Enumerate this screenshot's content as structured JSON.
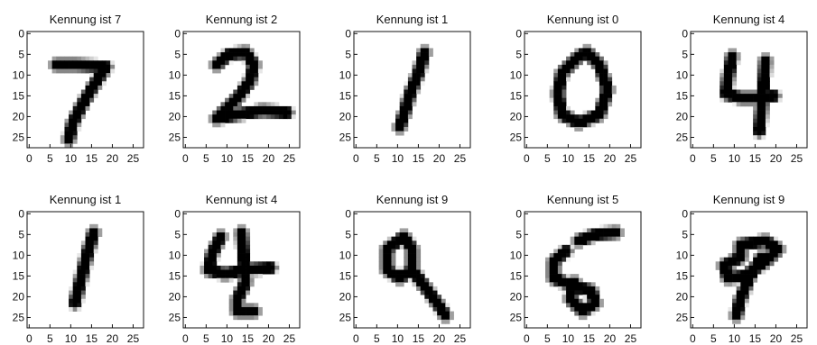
{
  "chart_data": [
    {
      "type": "heatmap",
      "title": "Kennung ist 7",
      "xlim": [
        0,
        27
      ],
      "ylim": [
        27,
        0
      ],
      "x_ticks": [
        "0",
        "5",
        "10",
        "15",
        "20",
        "25"
      ],
      "y_ticks": [
        "0",
        "5",
        "10",
        "15",
        "20",
        "25"
      ],
      "colormap": "gray_r",
      "strokes": [
        [
          [
            7,
            8
          ],
          [
            12,
            8
          ],
          [
            19,
            8.5
          ]
        ],
        [
          [
            19,
            8.5
          ],
          [
            16,
            13
          ],
          [
            13,
            18
          ],
          [
            11,
            22
          ],
          [
            10,
            26
          ]
        ]
      ]
    },
    {
      "type": "heatmap",
      "title": "Kennung ist 2",
      "xlim": [
        0,
        27
      ],
      "ylim": [
        27,
        0
      ],
      "x_ticks": [
        "0",
        "5",
        "10",
        "15",
        "20",
        "25"
      ],
      "y_ticks": [
        "0",
        "5",
        "10",
        "15",
        "20",
        "25"
      ],
      "colormap": "gray_r",
      "strokes": [
        [
          [
            8,
            8
          ],
          [
            11,
            5.5
          ],
          [
            15,
            5
          ],
          [
            17,
            8
          ],
          [
            16,
            12
          ],
          [
            13,
            16
          ],
          [
            10,
            19
          ],
          [
            8,
            21
          ]
        ],
        [
          [
            8,
            21
          ],
          [
            13,
            20
          ],
          [
            19,
            19
          ],
          [
            25,
            19.5
          ]
        ]
      ]
    },
    {
      "type": "heatmap",
      "title": "Kennung ist 1",
      "xlim": [
        0,
        27
      ],
      "ylim": [
        27,
        0
      ],
      "x_ticks": [
        "0",
        "5",
        "10",
        "15",
        "20",
        "25"
      ],
      "y_ticks": [
        "0",
        "5",
        "10",
        "15",
        "20",
        "25"
      ],
      "colormap": "gray_r",
      "strokes": [
        [
          [
            17,
            5
          ],
          [
            15.5,
            10
          ],
          [
            13.5,
            15
          ],
          [
            12,
            20
          ],
          [
            11,
            23
          ]
        ]
      ]
    },
    {
      "type": "heatmap",
      "title": "Kennung ist 0",
      "xlim": [
        0,
        27
      ],
      "ylim": [
        27,
        0
      ],
      "x_ticks": [
        "0",
        "5",
        "10",
        "15",
        "20",
        "25"
      ],
      "y_ticks": [
        "0",
        "5",
        "10",
        "15",
        "20",
        "25"
      ],
      "colormap": "gray_r",
      "strokes": [
        [
          [
            13,
            6
          ],
          [
            9,
            10
          ],
          [
            8,
            15
          ],
          [
            9,
            20
          ],
          [
            13,
            22
          ],
          [
            18,
            20
          ],
          [
            20,
            14
          ],
          [
            18,
            8
          ],
          [
            15,
            5
          ],
          [
            13,
            6
          ]
        ]
      ]
    },
    {
      "type": "heatmap",
      "title": "Kennung ist 4",
      "xlim": [
        0,
        27
      ],
      "ylim": [
        27,
        0
      ],
      "x_ticks": [
        "0",
        "5",
        "10",
        "15",
        "20",
        "25"
      ],
      "y_ticks": [
        "0",
        "5",
        "10",
        "15",
        "20",
        "25"
      ],
      "colormap": "gray_r",
      "strokes": [
        [
          [
            10,
            6
          ],
          [
            9,
            11
          ],
          [
            8.5,
            15
          ],
          [
            12,
            16
          ],
          [
            17,
            16
          ],
          [
            20,
            15.5
          ]
        ],
        [
          [
            18,
            7
          ],
          [
            17.5,
            13
          ],
          [
            17,
            19
          ],
          [
            16.5,
            24
          ]
        ]
      ]
    },
    {
      "type": "heatmap",
      "title": "Kennung ist 1",
      "xlim": [
        0,
        27
      ],
      "ylim": [
        27,
        0
      ],
      "x_ticks": [
        "0",
        "5",
        "10",
        "15",
        "20",
        "25"
      ],
      "y_ticks": [
        "0",
        "5",
        "10",
        "15",
        "20",
        "25"
      ],
      "colormap": "gray_r",
      "strokes": [
        [
          [
            16,
            5
          ],
          [
            14.5,
            10
          ],
          [
            13,
            16
          ],
          [
            11.5,
            22
          ]
        ]
      ]
    },
    {
      "type": "heatmap",
      "title": "Kennung ist 4",
      "xlim": [
        0,
        27
      ],
      "ylim": [
        27,
        0
      ],
      "x_ticks": [
        "0",
        "5",
        "10",
        "15",
        "20",
        "25"
      ],
      "y_ticks": [
        "0",
        "5",
        "10",
        "15",
        "20",
        "25"
      ],
      "colormap": "gray_r",
      "strokes": [
        [
          [
            9,
            6
          ],
          [
            7,
            10
          ],
          [
            6,
            14
          ],
          [
            10,
            15
          ],
          [
            15,
            14
          ],
          [
            21,
            13.5
          ]
        ],
        [
          [
            14,
            5
          ],
          [
            14.5,
            11
          ],
          [
            15,
            17
          ],
          [
            13,
            21
          ],
          [
            13,
            24
          ],
          [
            17,
            24
          ]
        ]
      ]
    },
    {
      "type": "heatmap",
      "title": "Kennung ist 9",
      "xlim": [
        0,
        27
      ],
      "ylim": [
        27,
        0
      ],
      "x_ticks": [
        "0",
        "5",
        "10",
        "15",
        "20",
        "25"
      ],
      "y_ticks": [
        "0",
        "5",
        "10",
        "15",
        "20",
        "25"
      ],
      "colormap": "gray_r",
      "strokes": [
        [
          [
            12,
            6
          ],
          [
            8,
            9
          ],
          [
            8,
            14
          ],
          [
            11,
            16
          ],
          [
            14,
            14
          ],
          [
            14,
            9
          ],
          [
            12,
            6
          ]
        ],
        [
          [
            14,
            14
          ],
          [
            17,
            18
          ],
          [
            20,
            22
          ],
          [
            22,
            25
          ]
        ]
      ]
    },
    {
      "type": "heatmap",
      "title": "Kennung ist 5",
      "xlim": [
        0,
        27
      ],
      "ylim": [
        27,
        0
      ],
      "x_ticks": [
        "0",
        "5",
        "10",
        "15",
        "20",
        "25"
      ],
      "y_ticks": [
        "0",
        "5",
        "10",
        "15",
        "20",
        "25"
      ],
      "colormap": "gray_r",
      "strokes": [
        [
          [
            13,
            7
          ],
          [
            17,
            5.5
          ],
          [
            22,
            5
          ]
        ],
        [
          [
            10,
            9.5
          ],
          [
            7,
            12
          ],
          [
            7,
            16
          ],
          [
            12,
            18
          ],
          [
            16,
            19
          ],
          [
            17,
            22
          ],
          [
            14,
            24
          ],
          [
            11,
            21
          ],
          [
            12,
            17
          ]
        ]
      ]
    },
    {
      "type": "heatmap",
      "title": "Kennung ist 9",
      "xlim": [
        0,
        27
      ],
      "ylim": [
        27,
        0
      ],
      "x_ticks": [
        "0",
        "5",
        "10",
        "15",
        "20",
        "25"
      ],
      "y_ticks": [
        "0",
        "5",
        "10",
        "15",
        "20",
        "25"
      ],
      "colormap": "gray_r",
      "strokes": [
        [
          [
            12,
            11
          ],
          [
            8,
            13
          ],
          [
            9,
            16
          ],
          [
            13,
            15.5
          ],
          [
            18,
            12
          ],
          [
            21,
            9
          ],
          [
            18,
            7
          ],
          [
            12,
            8
          ],
          [
            12,
            11
          ]
        ],
        [
          [
            17,
            11
          ],
          [
            14,
            16
          ],
          [
            12,
            21
          ],
          [
            11,
            25
          ]
        ]
      ]
    }
  ]
}
